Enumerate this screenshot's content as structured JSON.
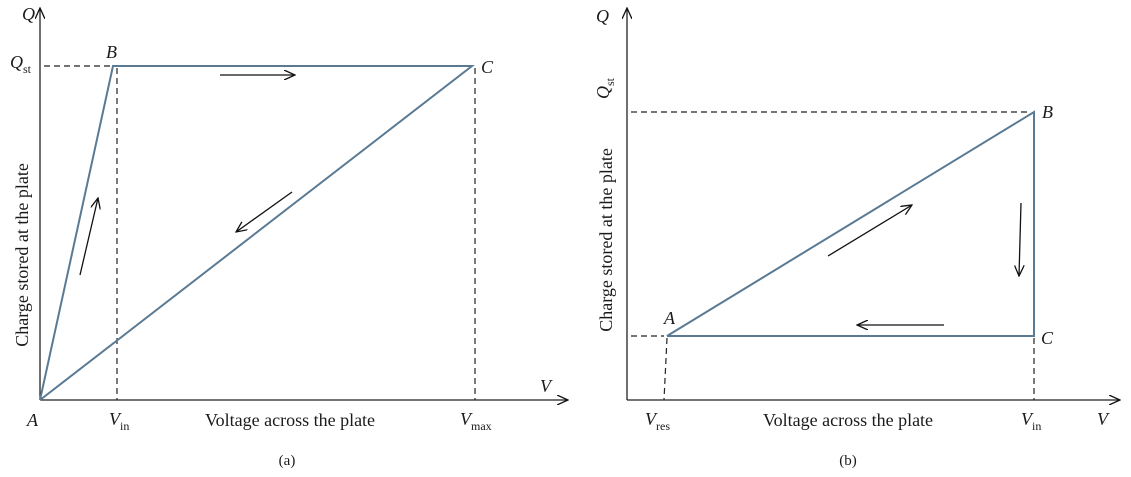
{
  "panel_a": {
    "caption": "(a)",
    "y_axis_symbol": "Q",
    "x_axis_symbol": "V",
    "y_axis_label": "Charge stored at the plate",
    "x_axis_label": "Voltage across the plate",
    "q_tick": {
      "main": "Q",
      "sub": "st"
    },
    "x_ticks": [
      {
        "main": "V",
        "sub": "in"
      },
      {
        "main": "V",
        "sub": "max"
      }
    ],
    "points": {
      "A": "A",
      "B": "B",
      "C": "C"
    }
  },
  "panel_b": {
    "caption": "(b)",
    "y_axis_symbol": "Q",
    "x_axis_symbol": "V",
    "y_axis_label": "Charge stored at the plate",
    "x_axis_label": "Voltage across the plate",
    "q_tick": {
      "main": "Q",
      "sub": "st"
    },
    "x_ticks": [
      {
        "main": "V",
        "sub": "res"
      },
      {
        "main": "V",
        "sub": "in"
      }
    ],
    "points": {
      "A": "A",
      "B": "B",
      "C": "C"
    }
  },
  "colors": {
    "curve": "#5a7a94",
    "axis": "#222222"
  }
}
